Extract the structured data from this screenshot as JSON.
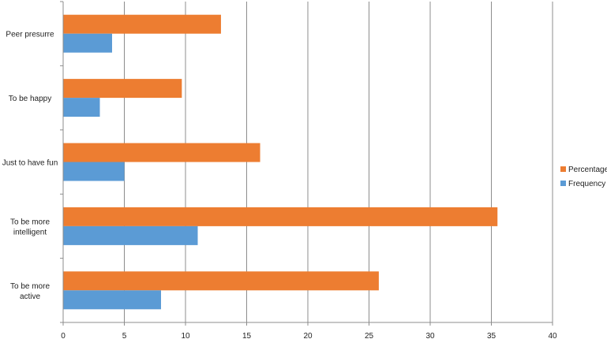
{
  "chart_data": {
    "type": "bar",
    "orientation": "horizontal",
    "categories": [
      "To be more active",
      "To be more intelligent",
      "Just to have fun",
      "To be happy",
      "Peer presurre"
    ],
    "category_label_lines": [
      [
        "To be more",
        "active"
      ],
      [
        "To be more",
        "intelligent"
      ],
      [
        "Just to have fun"
      ],
      [
        "To be happy"
      ],
      [
        "Peer presurre"
      ]
    ],
    "series": [
      {
        "name": "Frequency",
        "color": "#5b9bd5",
        "values": [
          8,
          11,
          5,
          3,
          4
        ]
      },
      {
        "name": "Percentage",
        "color": "#ed7d31",
        "values": [
          25.8,
          35.5,
          16.1,
          9.7,
          12.9
        ]
      }
    ],
    "legend_order": [
      "Percentage",
      "Frequency"
    ],
    "legend_position": "right",
    "xlim": [
      0,
      40
    ],
    "xticks": [
      "0",
      "5",
      "10",
      "15",
      "20",
      "25",
      "30",
      "35",
      "40"
    ],
    "grid": "vertical",
    "title": "",
    "xlabel": "",
    "ylabel": ""
  }
}
